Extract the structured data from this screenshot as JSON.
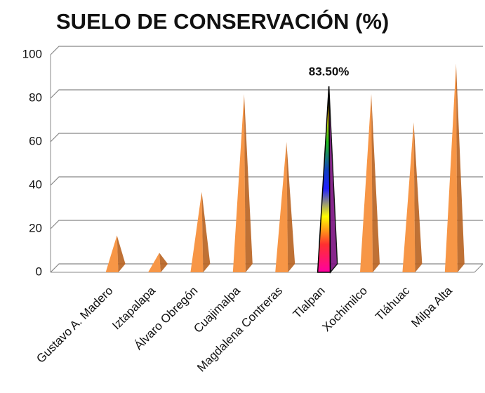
{
  "chart_data": {
    "type": "pyramid",
    "title": "SUELO DE CONSERVACIÓN (%)",
    "categories": [
      null,
      "Gustavo A. Madero",
      "Iztapalapa",
      "Álvaro Obregón",
      "Cuajimalpa",
      "Magdalena Contreras",
      "Tlalpan",
      "Xochimilco",
      "Tláhuac",
      "Milpa Alta"
    ],
    "values": [
      null,
      15,
      7,
      35,
      80,
      58,
      83.5,
      80,
      67,
      94
    ],
    "value_labels": [
      null,
      null,
      null,
      null,
      null,
      null,
      "83.50%",
      null,
      null,
      null
    ],
    "color": "#f79646",
    "highlight_index": 6,
    "ylim": [
      0,
      100
    ],
    "yticks": [
      0,
      20,
      40,
      60,
      80,
      100
    ],
    "grid": true
  }
}
